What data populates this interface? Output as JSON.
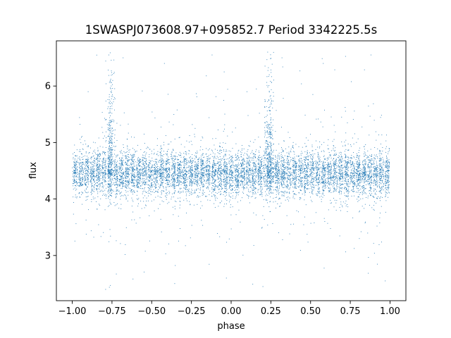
{
  "chart_data": {
    "type": "scatter",
    "title": "1SWASPJ073608.97+095852.7 Period 3342225.5s",
    "xlabel": "phase",
    "ylabel": "flux",
    "xlim": [
      -1.1,
      1.1
    ],
    "ylim": [
      2.2,
      6.8
    ],
    "x_ticks": [
      -1.0,
      -0.75,
      -0.5,
      -0.25,
      0.0,
      0.25,
      0.5,
      0.75,
      1.0
    ],
    "x_tick_labels": [
      "−1.00",
      "−0.75",
      "−0.50",
      "−0.25",
      "0.00",
      "0.25",
      "0.50",
      "0.75",
      "1.00"
    ],
    "y_ticks": [
      3,
      4,
      5,
      6
    ],
    "y_tick_labels": [
      "3",
      "4",
      "5",
      "6"
    ],
    "grid": false,
    "legend": "none",
    "marker_color": "#1f77b4",
    "series": [
      {
        "point_count_approx": 9000,
        "phase_range": [
          -1.0,
          1.0
        ],
        "baseline_flux": 4.45,
        "typical_scatter": 0.2,
        "flux_range": [
          2.4,
          6.6
        ],
        "peak_phases": [
          -0.76,
          0.24
        ],
        "notable_points": [
          {
            "x": -0.77,
            "y": 6.55
          },
          {
            "x": -0.76,
            "y": 6.1
          },
          {
            "x": -0.75,
            "y": 5.6
          },
          {
            "x": 0.23,
            "y": 6.6
          },
          {
            "x": 0.24,
            "y": 6.2
          },
          {
            "x": 0.25,
            "y": 5.7
          },
          {
            "x": -0.68,
            "y": 6.5
          },
          {
            "x": 0.32,
            "y": 6.5
          },
          {
            "x": -0.79,
            "y": 2.4
          },
          {
            "x": 0.2,
            "y": 2.45
          },
          {
            "x": -0.9,
            "y": 5.9
          },
          {
            "x": 0.1,
            "y": 5.9
          },
          {
            "x": -0.42,
            "y": 6.4
          },
          {
            "x": 0.58,
            "y": 6.4
          },
          {
            "x": -0.12,
            "y": 6.55
          },
          {
            "x": 0.88,
            "y": 6.55
          },
          {
            "x": -0.03,
            "y": 2.6
          },
          {
            "x": 0.97,
            "y": 2.55
          }
        ]
      }
    ]
  }
}
